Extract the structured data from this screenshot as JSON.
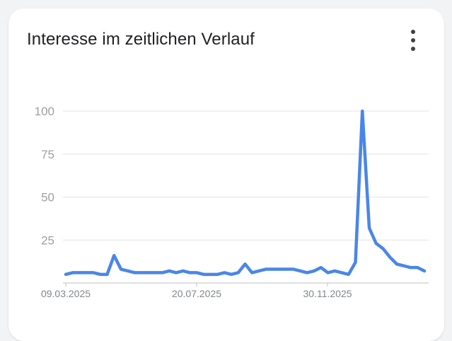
{
  "header": {
    "title": "Interesse im zeitlichen Verlauf",
    "menu_icon": "more-vert-icon"
  },
  "colors": {
    "line": "#4a86e8",
    "grid": "#e3e3e3",
    "axis": "#bdc1c6"
  },
  "chart_data": {
    "type": "line",
    "title": "Interesse im zeitlichen Verlauf",
    "xlabel": "",
    "ylabel": "",
    "ylim": [
      0,
      100
    ],
    "yticks": [
      25,
      50,
      75,
      100
    ],
    "xtick_labels": [
      "09.03.2025",
      "20.07.2025",
      "30.11.2025"
    ],
    "grid": true,
    "series": [
      {
        "values": [
          5,
          6,
          6,
          6,
          6,
          5,
          5,
          16,
          8,
          7,
          6,
          6,
          6,
          6,
          6,
          7,
          6,
          7,
          6,
          6,
          5,
          5,
          5,
          6,
          5,
          6,
          11,
          6,
          7,
          8,
          8,
          8,
          8,
          8,
          7,
          6,
          7,
          9,
          6,
          7,
          6,
          5,
          12,
          100,
          32,
          23,
          20,
          15,
          11,
          10,
          9,
          9,
          7
        ]
      }
    ]
  }
}
